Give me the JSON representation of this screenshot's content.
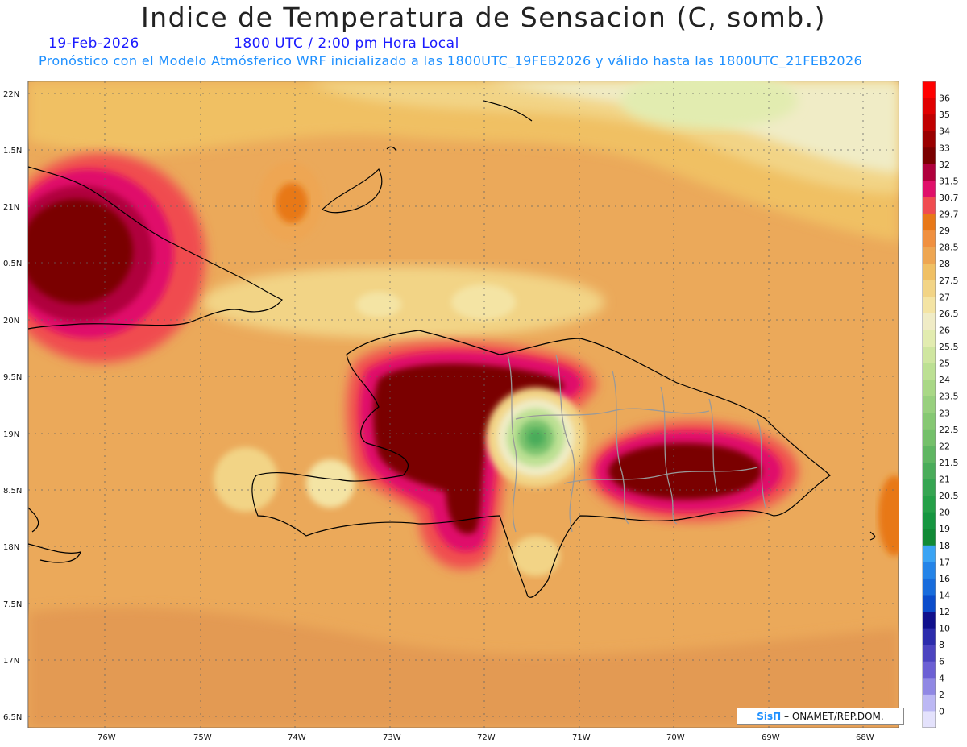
{
  "header": {
    "title": "Indice de Temperatura de Sensacion (C, somb.)",
    "date": "19-Feb-2026",
    "time": "1800 UTC / 2:00 pm Hora Local",
    "description": "Pronóstico con el Modelo Atmósferico WRF inicializado a las 1800UTC_19FEB2026 y válido hasta las  1800UTC_21FEB2026"
  },
  "map": {
    "lat_labels": [
      "22N",
      "1.5N",
      "21N",
      "0.5N",
      "20N",
      "9.5N",
      "19N",
      "8.5N",
      "18N",
      "7.5N",
      "17N",
      "6.5N"
    ],
    "lon_labels": [
      "76W",
      "75W",
      "74W",
      "73W",
      "72W",
      "71W",
      "70W",
      "69W",
      "68W"
    ],
    "background_color": "#eba95a"
  },
  "colorbar": {
    "labels": [
      "36",
      "35",
      "34",
      "33",
      "32",
      "31.5",
      "30.7",
      "29.7",
      "29",
      "28.5",
      "28",
      "27.5",
      "27",
      "26.5",
      "26",
      "25.5",
      "25",
      "24",
      "23.5",
      "23",
      "22.5",
      "22",
      "21.5",
      "21",
      "20.5",
      "20",
      "19",
      "18",
      "17",
      "16",
      "14",
      "12",
      "10",
      "8",
      "6",
      "4",
      "2",
      "0"
    ],
    "colors": [
      "#ff0000",
      "#e00000",
      "#c00000",
      "#9a0000",
      "#7a0000",
      "#b0003c",
      "#e0106a",
      "#f04c50",
      "#e87818",
      "#f09040",
      "#eea652",
      "#f0c064",
      "#f2d486",
      "#f4e4a4",
      "#f0ecc6",
      "#e2ecb0",
      "#cfe6a0",
      "#bce093",
      "#a9d886",
      "#98d07e",
      "#86c873",
      "#74c06a",
      "#5fb662",
      "#4aac5a",
      "#36a552",
      "#25a048",
      "#169640",
      "#118a36",
      "#3aa4f4",
      "#2484e8",
      "#186cdc",
      "#0b4ccb",
      "#10108c",
      "#2c2cac",
      "#4c44c0",
      "#6c60d4",
      "#9088e4",
      "#bcb8f4",
      "#e4e2fc"
    ]
  },
  "credit": {
    "brand": "SisΠ",
    "text": " – ONAMET/REP.DOM."
  }
}
